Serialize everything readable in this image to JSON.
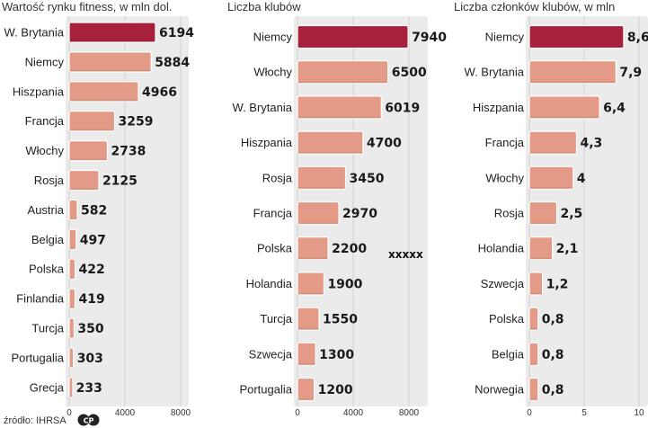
{
  "chart_data": [
    {
      "type": "bar",
      "title": "Wartość rynku fitness, w mln dol.",
      "categories": [
        "W. Brytania",
        "Niemcy",
        "Hiszpania",
        "Francja",
        "Włochy",
        "Rosja",
        "Austria",
        "Belgia",
        "Polska",
        "Finlandia",
        "Turcja",
        "Portugalia",
        "Grecja"
      ],
      "values": [
        6194,
        5884,
        4966,
        3259,
        2738,
        2125,
        582,
        497,
        422,
        419,
        350,
        303,
        233
      ],
      "value_labels": [
        "6194",
        "5884",
        "4966",
        "3259",
        "2738",
        "2125",
        "582",
        "497",
        "422",
        "419",
        "350",
        "303",
        "233"
      ],
      "xlim": [
        0,
        8000
      ],
      "ticks": [
        {
          "v": 0,
          "label": "0"
        },
        {
          "v": 4000,
          "label": "4000"
        },
        {
          "v": 8000,
          "label": "8000"
        }
      ],
      "highlight_index": 0
    },
    {
      "type": "bar",
      "title": "Liczba klubów",
      "categories": [
        "Niemcy",
        "Włochy",
        "W. Brytania",
        "Hiszpania",
        "Rosja",
        "Francja",
        "Polska",
        "Holandia",
        "Turcja",
        "Szwecja",
        "Portugalia"
      ],
      "values": [
        7940,
        6500,
        6019,
        4700,
        3450,
        2970,
        2200,
        1900,
        1550,
        1300,
        1200
      ],
      "value_labels": [
        "7940",
        "6500",
        "6019",
        "4700",
        "3450",
        "2970",
        "2200",
        "1900",
        "1550",
        "1300",
        "1200"
      ],
      "xlim": [
        0,
        8000
      ],
      "ticks": [
        {
          "v": 0,
          "label": "0"
        },
        {
          "v": 4000,
          "label": "4000"
        },
        {
          "v": 8000,
          "label": "8000"
        }
      ],
      "highlight_index": 0
    },
    {
      "type": "bar",
      "title": "Liczba członków klubów, w mln",
      "categories": [
        "Niemcy",
        "W. Brytania",
        "Hiszpania",
        "Francja",
        "Włochy",
        "Rosja",
        "Holandia",
        "Szwecja",
        "Polska",
        "Belgia",
        "Norwegia"
      ],
      "values": [
        8.6,
        7.9,
        6.4,
        4.3,
        4,
        2.5,
        2.1,
        1.2,
        0.8,
        0.8,
        0.8
      ],
      "value_labels": [
        "8,6",
        "7,9",
        "6,4",
        "4,3",
        "4",
        "2,5",
        "2,1",
        "1,2",
        "0,8",
        "0,8",
        "0,8"
      ],
      "xlim": [
        0,
        10
      ],
      "ticks": [
        {
          "v": 0,
          "label": "0"
        },
        {
          "v": 5,
          "label": "5"
        },
        {
          "v": 10,
          "label": "10"
        }
      ],
      "highlight_index": 0
    }
  ],
  "annotation": "xxxxx",
  "source": "źródło: IHRSA",
  "copyright_logo": "CP",
  "colors": {
    "highlight_fill": "#a8213b",
    "bar_fill": "#e39a86",
    "bar_stroke": "#ffffff",
    "panel_bg": "#ebebeb",
    "grid": "#d0d0d0"
  }
}
